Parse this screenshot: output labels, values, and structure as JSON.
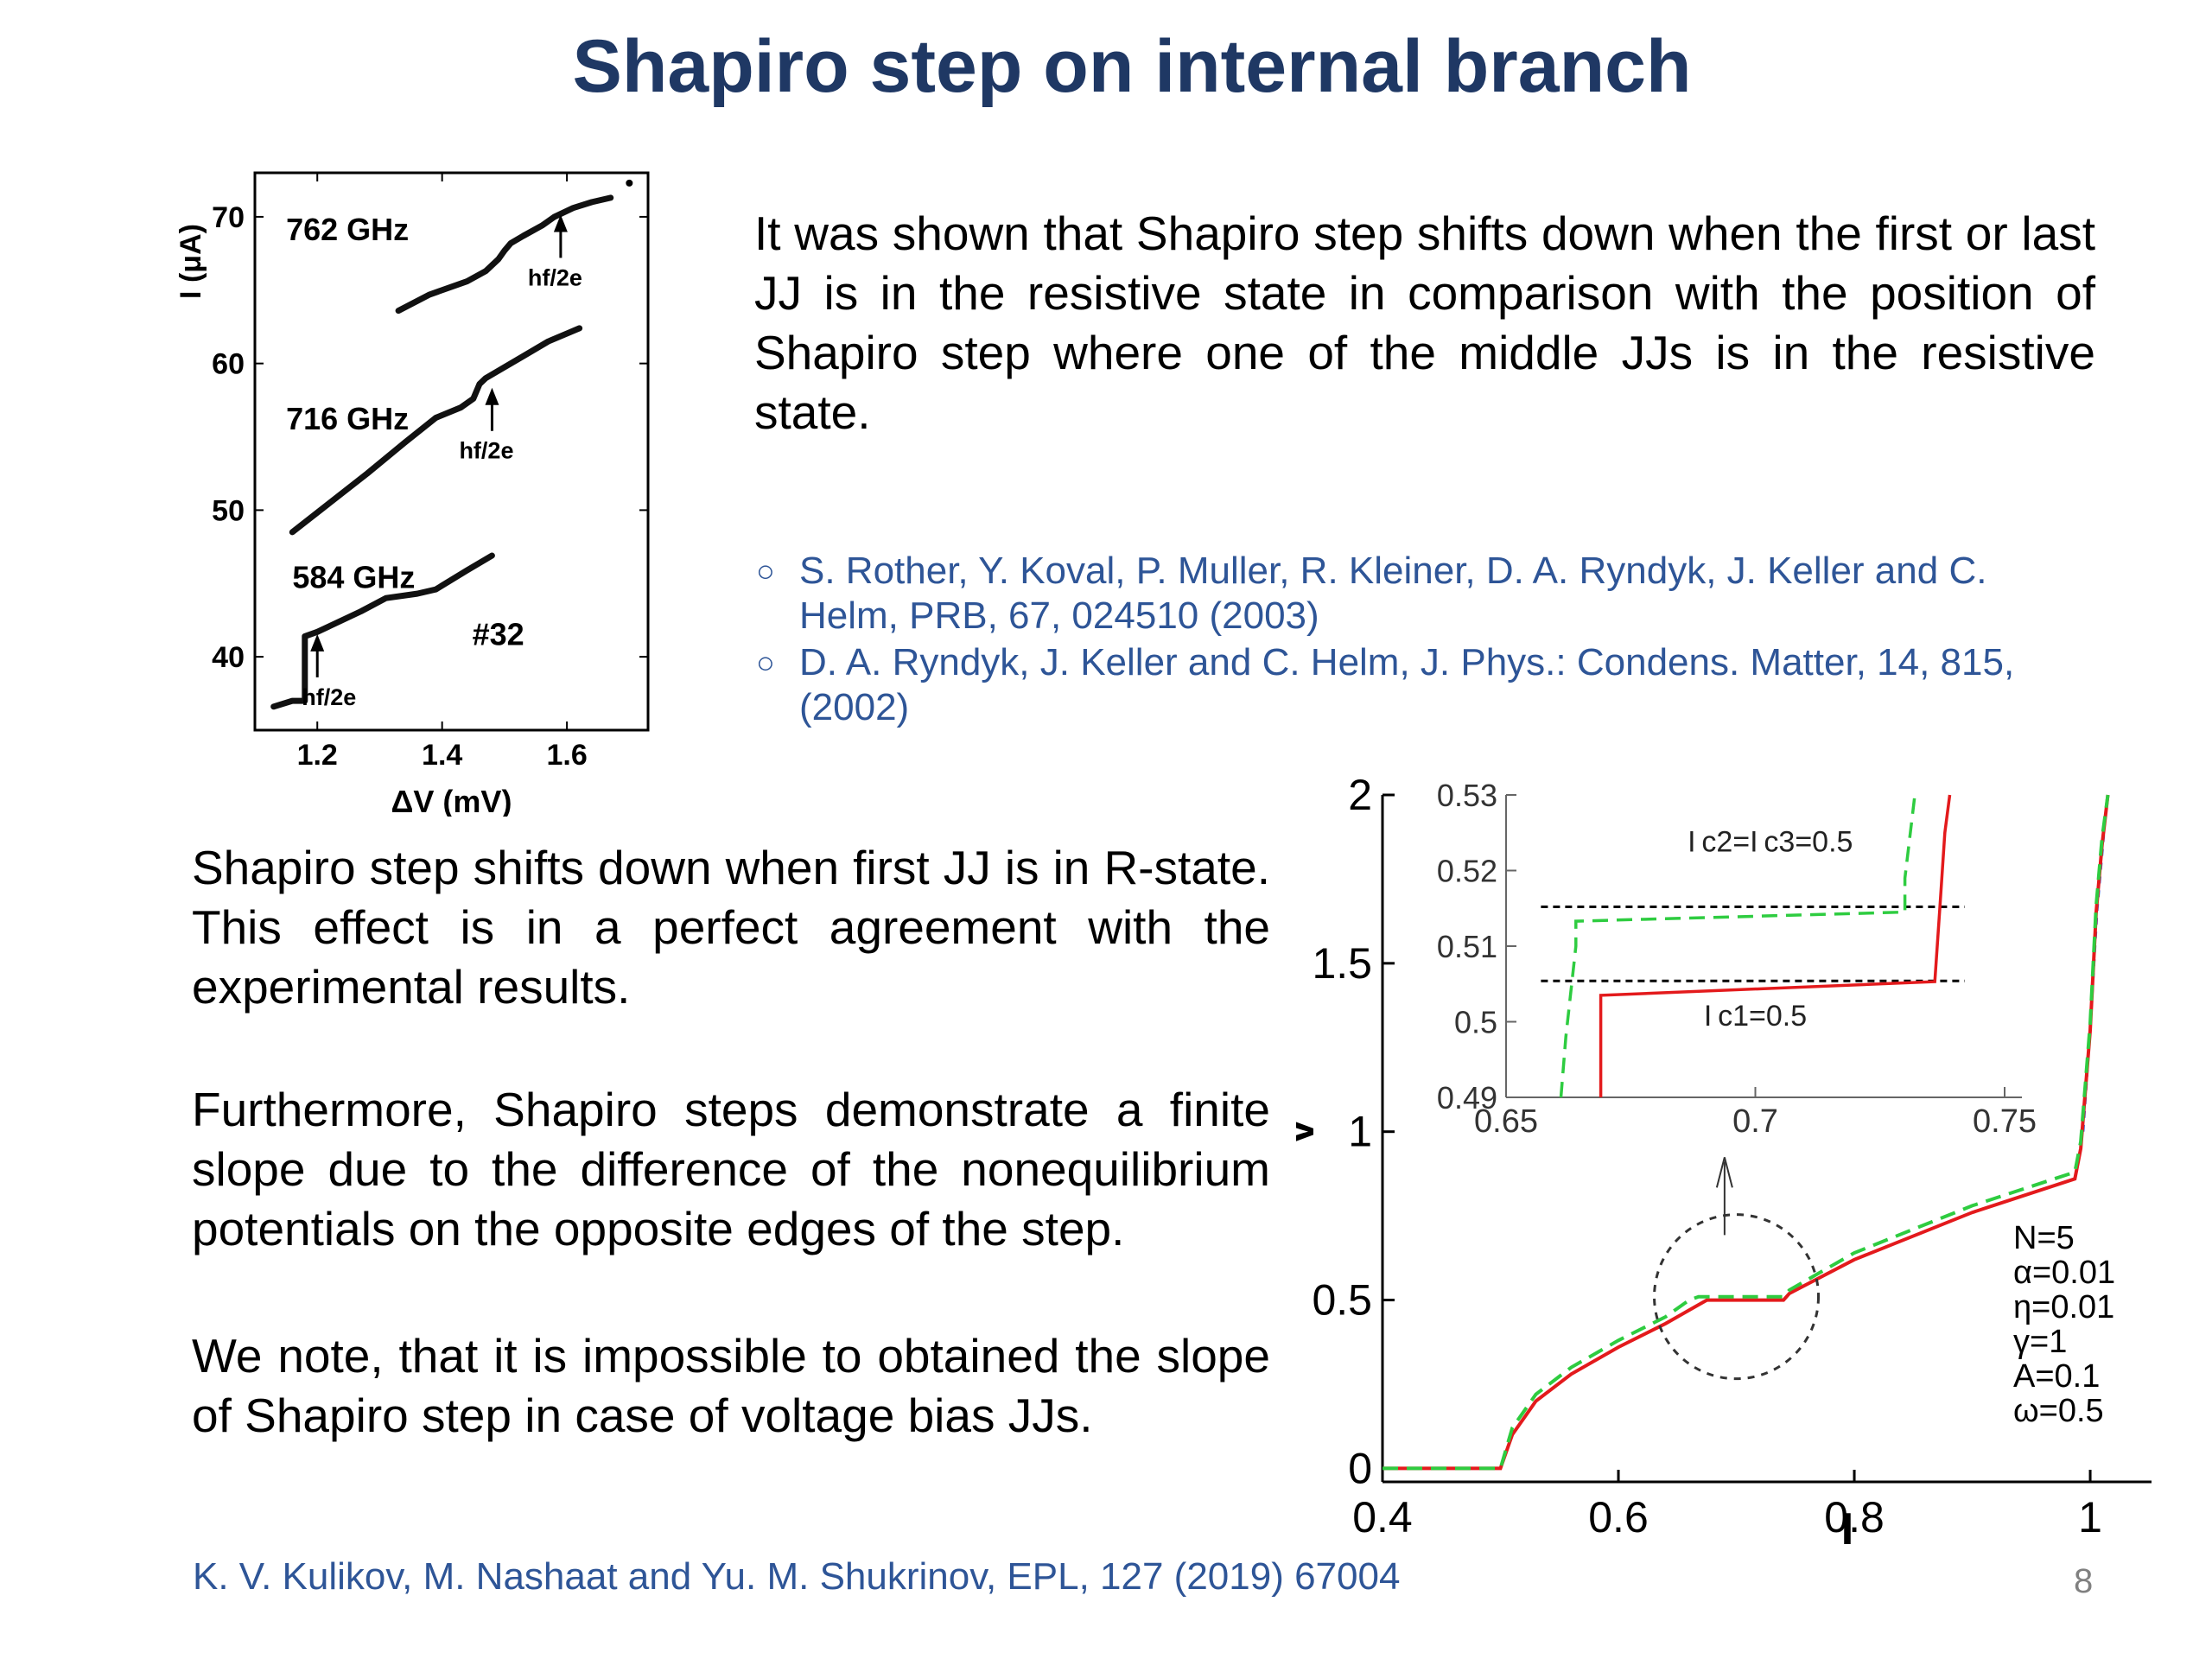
{
  "title": "Shapiro step on internal branch",
  "intro_text": "It was shown that Shapiro step shifts down when the first or last JJ is in the resistive state in comparison with the position of Shapiro step where one of the middle JJs is in the resistive state.",
  "references": [
    "S. Rother, Y. Koval, P. Muller, R. Kleiner, D. A. Ryndyk, J. Keller and C. Helm, PRB, 67, 024510 (2003)",
    "D. A. Ryndyk, J. Keller and C. Helm, J. Phys.: Condens. Matter, 14, 815, (2002)"
  ],
  "body_paragraphs": [
    "Shapiro step shifts down when first JJ is in R-state. This effect is in a perfect agreement with the experimental results.",
    "Furthermore, Shapiro steps demonstrate a finite slope due to the difference of the nonequilibrium potentials on the opposite edges of the step.",
    "We note, that it is impossible to obtained the slope of Shapiro step in case of voltage bias JJs."
  ],
  "footer": "K. V. Kulikov, M. Nashaat and Yu. M. Shukrinov, EPL, 127 (2019) 67004",
  "page_number": "8",
  "colors": {
    "title": "#1f3864",
    "reference_text": "#2e5597",
    "curve_red": "#e31a1c",
    "curve_green": "#2ecc40",
    "curve_blue": "#3b5bdb"
  },
  "chart_data": [
    {
      "type": "line",
      "title": "",
      "xlabel": "ΔV (mV)",
      "ylabel": "I (μA)",
      "xlim": [
        1.1,
        1.73
      ],
      "ylim": [
        35,
        73
      ],
      "x_ticks": [
        "1.2",
        "1.4",
        "1.6"
      ],
      "y_ticks": [
        "40",
        "50",
        "60",
        "70"
      ],
      "sample_label": "#32",
      "series": [
        {
          "name": "762 GHz",
          "annotation": "hf/2e",
          "x": [
            1.33,
            1.38,
            1.44,
            1.47,
            1.49,
            1.5,
            1.51,
            1.53,
            1.56,
            1.58,
            1.61,
            1.64,
            1.67
          ],
          "y": [
            63.6,
            64.7,
            65.6,
            66.3,
            67.1,
            67.7,
            68.2,
            68.7,
            69.4,
            70.0,
            70.6,
            71.0,
            71.3
          ]
        },
        {
          "name": "716 GHz",
          "annotation": "hf/2e",
          "x": [
            1.16,
            1.22,
            1.28,
            1.34,
            1.39,
            1.43,
            1.45,
            1.46,
            1.47,
            1.49,
            1.53,
            1.57,
            1.62
          ],
          "y": [
            48.5,
            50.5,
            52.5,
            54.6,
            56.3,
            57.0,
            57.6,
            58.6,
            59.0,
            59.5,
            60.5,
            61.5,
            62.4
          ]
        },
        {
          "name": "584 GHz",
          "annotation": "hf/2e",
          "x": [
            1.13,
            1.16,
            1.18,
            1.18,
            1.2,
            1.22,
            1.27,
            1.31,
            1.36,
            1.39,
            1.44,
            1.48
          ],
          "y": [
            36.6,
            37.0,
            37.0,
            41.4,
            41.7,
            42.1,
            43.1,
            44.0,
            44.3,
            44.6,
            45.9,
            46.9
          ]
        }
      ]
    },
    {
      "type": "line",
      "title": "",
      "xlabel": "I",
      "ylabel": "V",
      "xlim": [
        0.4,
        1.03
      ],
      "ylim": [
        -0.04,
        2.0
      ],
      "x_ticks": [
        "0.4",
        "0.6",
        "0.8",
        "1"
      ],
      "y_ticks": [
        "0",
        "0.5",
        "1",
        "1.5",
        "2"
      ],
      "parameters": [
        "N=5",
        "α=0.01",
        "η=0.01",
        "γ=1",
        "A=0.1",
        "ω=0.5"
      ],
      "series": [
        {
          "color": "red",
          "x": [
            0.4,
            0.5,
            0.51,
            0.53,
            0.56,
            0.6,
            0.64,
            0.665,
            0.675,
            0.74,
            0.745,
            0.8,
            0.9,
            0.987,
            0.992,
            1.0,
            1.005,
            1.01,
            1.015
          ],
          "y": [
            0.0,
            0.0,
            0.1,
            0.2,
            0.28,
            0.36,
            0.43,
            0.48,
            0.5,
            0.5,
            0.52,
            0.62,
            0.76,
            0.86,
            0.95,
            1.3,
            1.65,
            1.85,
            2.0
          ]
        },
        {
          "color": "green",
          "x": [
            0.4,
            0.5,
            0.51,
            0.53,
            0.56,
            0.6,
            0.64,
            0.66,
            0.668,
            0.74,
            0.745,
            0.8,
            0.9,
            0.987,
            0.992,
            1.0,
            1.005,
            1.01,
            1.015
          ],
          "y": [
            0.0,
            0.0,
            0.12,
            0.22,
            0.3,
            0.38,
            0.45,
            0.5,
            0.51,
            0.51,
            0.53,
            0.64,
            0.78,
            0.88,
            0.97,
            1.32,
            1.67,
            1.87,
            2.0
          ]
        }
      ]
    },
    {
      "type": "line",
      "title": "",
      "xlim": [
        0.65,
        0.75
      ],
      "ylim": [
        0.49,
        0.53
      ],
      "x_ticks": [
        "0.65",
        "0.7",
        "0.75"
      ],
      "y_ticks": [
        "0.49",
        "0.5",
        "0.51",
        "0.52",
        "0.53"
      ],
      "labels": [
        "I c2=I c3=0.5",
        "I c1=0.5"
      ],
      "series": [
        {
          "color": "red",
          "x": [
            0.669,
            0.669,
            0.736,
            0.737,
            0.738,
            0.739
          ],
          "y": [
            0.49,
            0.5035,
            0.5053,
            0.515,
            0.525,
            0.53
          ]
        },
        {
          "color": "green",
          "x": [
            0.661,
            0.662,
            0.664,
            0.664,
            0.73,
            0.73,
            0.732
          ],
          "y": [
            0.49,
            0.498,
            0.51,
            0.5133,
            0.5145,
            0.519,
            0.53
          ]
        }
      ],
      "reference_lines": [
        0.5152,
        0.5054
      ]
    }
  ]
}
